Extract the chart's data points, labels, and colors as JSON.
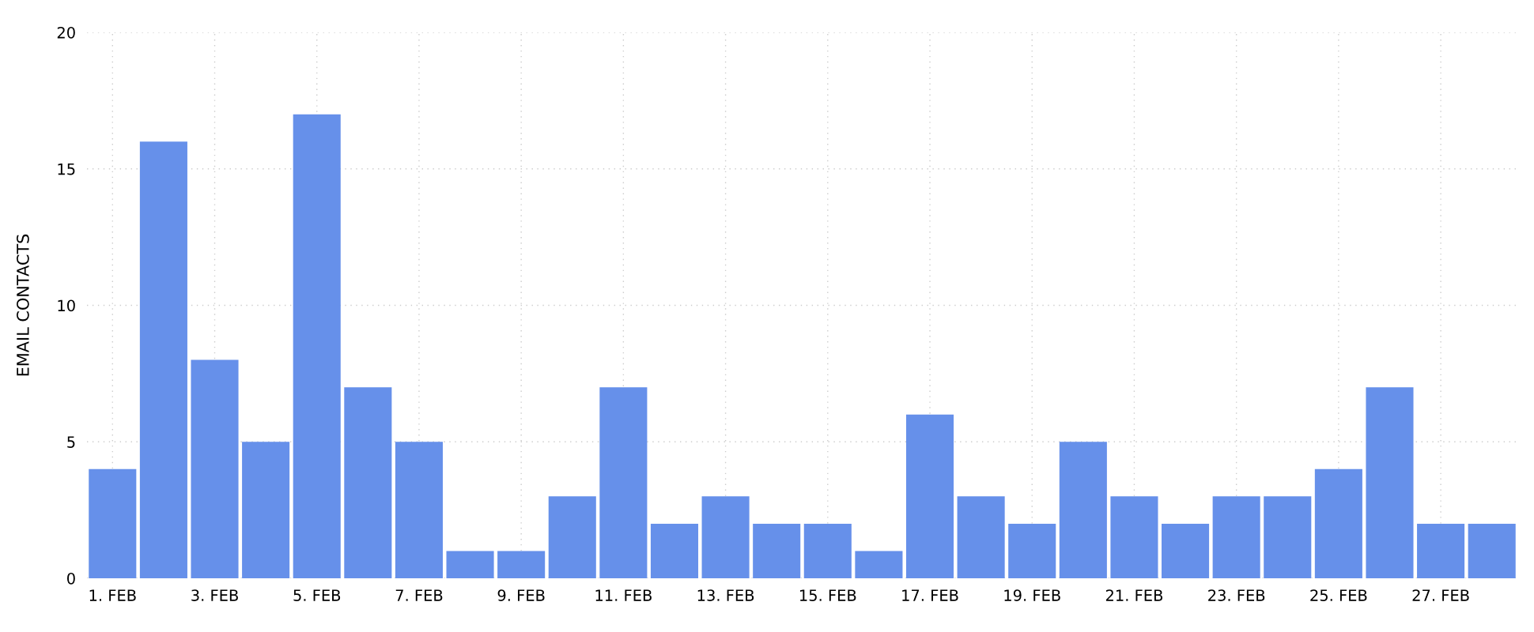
{
  "chart_data": {
    "type": "bar",
    "ylabel": "EMAIL CONTACTS",
    "categories": [
      "1. FEB",
      null,
      "3. FEB",
      null,
      "5. FEB",
      null,
      "7. FEB",
      null,
      "9. FEB",
      null,
      "11. FEB",
      null,
      "13. FEB",
      null,
      "15. FEB",
      null,
      "17. FEB",
      null,
      "19. FEB",
      null,
      "21. FEB",
      null,
      "23. FEB",
      null,
      "25. FEB",
      null,
      "27. FEB",
      null
    ],
    "values": [
      4,
      16,
      8,
      5,
      17,
      7,
      5,
      1,
      1,
      3,
      7,
      2,
      3,
      2,
      2,
      1,
      6,
      3,
      2,
      5,
      3,
      2,
      3,
      3,
      4,
      7,
      2,
      2
    ],
    "color": "#6690ea",
    "ylim": [
      0,
      20
    ],
    "yticks": [
      0,
      5,
      10,
      15,
      20
    ],
    "grid": true,
    "legend": false
  }
}
